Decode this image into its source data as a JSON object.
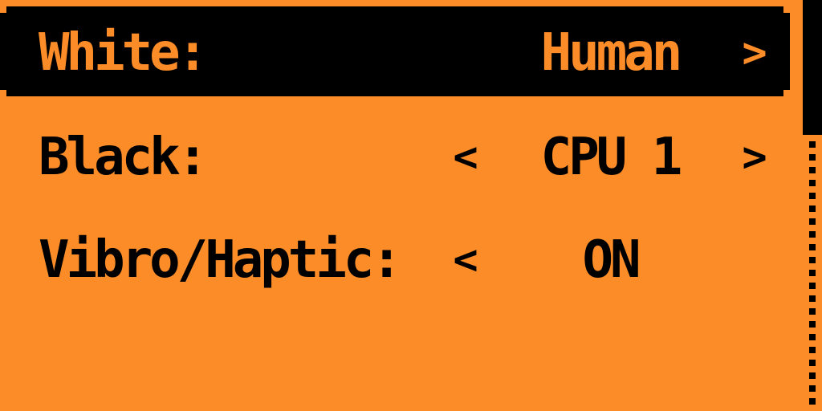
{
  "screen": {
    "type": "game-settings-menu",
    "colors": {
      "background_orange": "#FB8C28",
      "foreground_black": "#000000",
      "selected_row_bg": "#000000",
      "selected_row_text": "#FB8C28"
    }
  },
  "menu": {
    "items": [
      {
        "id": "white",
        "label": "White:",
        "value": "Human",
        "selected": true,
        "has_left_arrow": false,
        "has_right_arrow": true
      },
      {
        "id": "black",
        "label": "Black:",
        "value": "CPU 1",
        "selected": false,
        "has_left_arrow": true,
        "has_right_arrow": true
      },
      {
        "id": "vibro-haptic",
        "label": "Vibro/Haptic:",
        "value": "ON",
        "selected": false,
        "has_left_arrow": true,
        "has_right_arrow": false
      }
    ]
  },
  "icons": {
    "chevron_left": "<",
    "chevron_right": ">"
  },
  "scrollbar": {
    "thumb_position": "top"
  }
}
